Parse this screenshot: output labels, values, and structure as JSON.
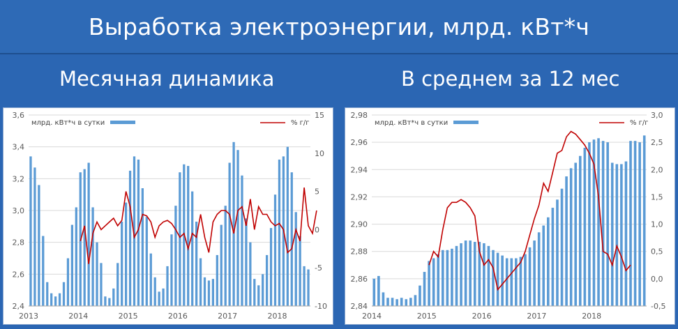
{
  "page": {
    "title": "Выработка электроэнергии, млрд. кВт*ч"
  },
  "colors": {
    "background": "#2b66b3",
    "bar": "#5b9bd5",
    "line": "#c00000",
    "grid": "#d9d9d9"
  },
  "chart_data": [
    {
      "type": "bar",
      "title": "Месячная динамика",
      "series": [
        {
          "name": "млрд. кВт*ч в сутки",
          "type": "bar",
          "axis": "left",
          "values": [
            3.34,
            3.27,
            3.16,
            2.84,
            2.55,
            2.48,
            2.46,
            2.48,
            2.55,
            2.7,
            2.91,
            3.02,
            3.24,
            3.26,
            3.3,
            3.02,
            2.8,
            2.67,
            2.46,
            2.45,
            2.51,
            2.67,
            2.93,
            3.05,
            3.25,
            3.34,
            3.32,
            3.14,
            2.96,
            2.73,
            2.58,
            2.49,
            2.51,
            2.65,
            2.85,
            3.03,
            3.24,
            3.29,
            3.28,
            3.12,
            2.93,
            2.7,
            2.58,
            2.56,
            2.57,
            2.72,
            2.91,
            3.03,
            3.3,
            3.43,
            3.38,
            3.22,
            2.95,
            2.8,
            2.57,
            2.53,
            2.6,
            2.72,
            2.89,
            3.1,
            3.32,
            3.34,
            3.4,
            3.24,
            2.99,
            2.84,
            2.65,
            2.63
          ]
        },
        {
          "name": "% г/г",
          "type": "line",
          "axis": "right",
          "start_index": 12,
          "values": [
            -1.5,
            0.5,
            -4.5,
            -0.5,
            1.0,
            0.0,
            0.5,
            1.0,
            1.5,
            0.5,
            1.2,
            5.0,
            3.0,
            -1.0,
            0.0,
            2.0,
            1.8,
            1.0,
            -1.0,
            0.5,
            1.0,
            1.2,
            0.8,
            0.0,
            -1.0,
            -0.5,
            -2.5,
            -0.5,
            -1.0,
            2.0,
            -1.0,
            -3.0,
            1.0,
            2.0,
            2.5,
            2.5,
            2.0,
            -0.5,
            2.5,
            3.0,
            0.5,
            4.0,
            0.0,
            3.0,
            2.0,
            2.0,
            1.0,
            0.5,
            0.8,
            0.0,
            -3.0,
            -2.5,
            0.0,
            -1.5,
            5.5,
            0.5,
            -0.5,
            2.5
          ]
        }
      ],
      "left_axis": {
        "min": 2.4,
        "max": 3.6,
        "ticks": [
          "2,4",
          "2,6",
          "2,8",
          "3,0",
          "3,2",
          "3,4",
          "3,6"
        ]
      },
      "right_axis": {
        "min": -10,
        "max": 15,
        "ticks": [
          "-10",
          "-5",
          "0",
          "5",
          "10",
          "15"
        ]
      },
      "x_labels": [
        "2013",
        "2014",
        "2015",
        "2016",
        "2017",
        "2018"
      ],
      "grid": true,
      "legend_position": "top"
    },
    {
      "type": "bar",
      "title": "В среднем за 12 мес",
      "series": [
        {
          "name": "млрд. кВт*ч в сутки",
          "type": "bar",
          "axis": "left",
          "values": [
            2.86,
            2.862,
            2.85,
            2.846,
            2.846,
            2.845,
            2.846,
            2.845,
            2.846,
            2.848,
            2.855,
            2.865,
            2.873,
            2.875,
            2.878,
            2.881,
            2.881,
            2.882,
            2.884,
            2.886,
            2.888,
            2.888,
            2.887,
            2.887,
            2.886,
            2.884,
            2.881,
            2.879,
            2.877,
            2.875,
            2.875,
            2.875,
            2.876,
            2.878,
            2.883,
            2.888,
            2.894,
            2.899,
            2.905,
            2.912,
            2.918,
            2.926,
            2.935,
            2.941,
            2.945,
            2.95,
            2.956,
            2.96,
            2.962,
            2.963,
            2.961,
            2.96,
            2.945,
            2.944,
            2.944,
            2.946,
            2.961,
            2.961,
            2.96,
            2.965
          ]
        },
        {
          "name": "% г/г",
          "type": "line",
          "axis": "right",
          "start_index": 12,
          "values": [
            0.25,
            0.5,
            0.4,
            0.9,
            1.3,
            1.4,
            1.4,
            1.45,
            1.4,
            1.3,
            1.15,
            0.5,
            0.25,
            0.35,
            0.2,
            -0.2,
            -0.1,
            0.0,
            0.1,
            0.2,
            0.3,
            0.5,
            0.8,
            1.1,
            1.35,
            1.75,
            1.6,
            1.95,
            2.3,
            2.35,
            2.6,
            2.7,
            2.65,
            2.55,
            2.45,
            2.3,
            2.1,
            1.5,
            0.5,
            0.45,
            0.25,
            0.6,
            0.4,
            0.15,
            0.25
          ]
        }
      ],
      "left_axis": {
        "min": 2.84,
        "max": 2.98,
        "ticks": [
          "2,84",
          "2,86",
          "2,88",
          "2,90",
          "2,92",
          "2,94",
          "2,96",
          "2,98"
        ]
      },
      "right_axis": {
        "min": -0.5,
        "max": 3.0,
        "ticks": [
          "-0,5",
          "0,0",
          "0,5",
          "1,0",
          "1,5",
          "2,0",
          "2,5",
          "3,0"
        ]
      },
      "x_labels": [
        "2014",
        "2015",
        "2016",
        "2017",
        "2018"
      ],
      "grid": true,
      "legend_position": "top"
    }
  ]
}
